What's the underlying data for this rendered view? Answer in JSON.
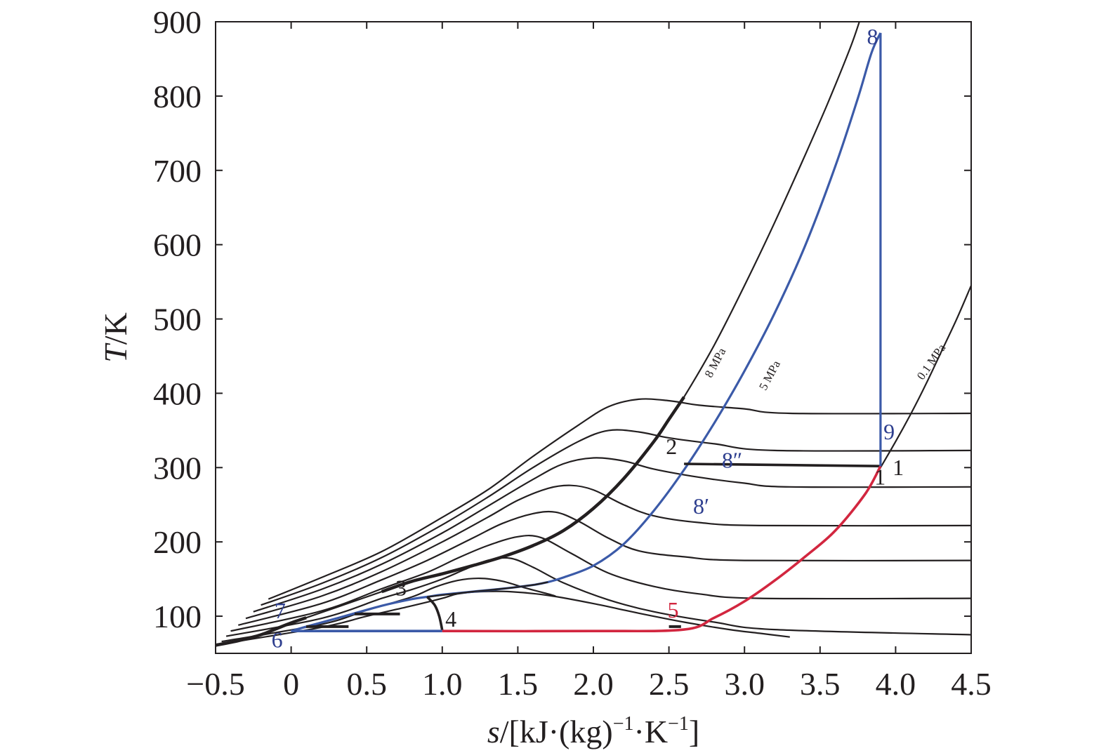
{
  "chart_data": {
    "type": "line",
    "xlabel": {
      "italic": "s",
      "rest": "/[kJ·(kg)",
      "sup1": "−1",
      "mid": "·K",
      "sup2": "−1",
      "end": "]"
    },
    "ylabel": {
      "italic": "T",
      "rest": "/K"
    },
    "xlim": [
      -0.5,
      4.5
    ],
    "ylim": [
      50,
      900
    ],
    "xticks": [
      {
        "v": -0.5,
        "label": "−0.5"
      },
      {
        "v": 0,
        "label": "0"
      },
      {
        "v": 0.5,
        "label": "0.5"
      },
      {
        "v": 1.0,
        "label": "1.0"
      },
      {
        "v": 1.5,
        "label": "1.5"
      },
      {
        "v": 2.0,
        "label": "2.0"
      },
      {
        "v": 2.5,
        "label": "2.5"
      },
      {
        "v": 3.0,
        "label": "3.0"
      },
      {
        "v": 3.5,
        "label": "3.5"
      },
      {
        "v": 4.0,
        "label": "4.0"
      },
      {
        "v": 4.5,
        "label": "4.5"
      }
    ],
    "yticks": [
      {
        "v": 100,
        "label": "100"
      },
      {
        "v": 200,
        "label": "200"
      },
      {
        "v": 300,
        "label": "300"
      },
      {
        "v": 400,
        "label": "400"
      },
      {
        "v": 500,
        "label": "500"
      },
      {
        "v": 600,
        "label": "600"
      },
      {
        "v": 700,
        "label": "700"
      },
      {
        "v": 800,
        "label": "800"
      },
      {
        "v": 900,
        "label": "900"
      }
    ],
    "colors": {
      "black": "#231f20",
      "blue": "#3b5aa8",
      "red": "#d2263f",
      "blue_label": "#2e3f8f"
    },
    "isobars": [
      {
        "name": "8 MPa",
        "points": [
          [
            -0.5,
            61
          ],
          [
            -0.35,
            67
          ],
          [
            -0.2,
            75
          ],
          [
            -0.1,
            83
          ],
          [
            0,
            91
          ],
          [
            0.1,
            98
          ],
          [
            0.3,
            112
          ],
          [
            0.6,
            133
          ],
          [
            0.8,
            147
          ],
          [
            1.0,
            157
          ],
          [
            1.2,
            168
          ],
          [
            1.4,
            180
          ],
          [
            1.6,
            195
          ],
          [
            1.8,
            215
          ],
          [
            2.0,
            245
          ],
          [
            2.2,
            285
          ],
          [
            2.4,
            335
          ],
          [
            2.5,
            365
          ],
          [
            2.6,
            395
          ],
          [
            2.8,
            465
          ],
          [
            3.0,
            545
          ],
          [
            3.2,
            630
          ],
          [
            3.4,
            720
          ],
          [
            3.55,
            790
          ],
          [
            3.7,
            865
          ],
          [
            3.76,
            900
          ]
        ]
      },
      {
        "name": "5 MPa",
        "points": [
          [
            0,
            80
          ],
          [
            0.1,
            86
          ],
          [
            0.3,
            97
          ],
          [
            0.6,
            114
          ],
          [
            0.8,
            123
          ],
          [
            0.9,
            126
          ],
          [
            1.0,
            129
          ],
          [
            1.2,
            133
          ],
          [
            1.4,
            137
          ],
          [
            1.6,
            142
          ],
          [
            1.7,
            146
          ],
          [
            1.8,
            152
          ],
          [
            2.0,
            168
          ],
          [
            2.2,
            197
          ],
          [
            2.4,
            242
          ],
          [
            2.6,
            297
          ],
          [
            2.8,
            360
          ],
          [
            3.0,
            430
          ],
          [
            3.2,
            508
          ],
          [
            3.4,
            598
          ],
          [
            3.6,
            705
          ],
          [
            3.75,
            797
          ],
          [
            3.84,
            858
          ],
          [
            3.9,
            885
          ]
        ]
      },
      {
        "name": "0.1 MPa",
        "points": [
          [
            3.87,
            290
          ],
          [
            3.9,
            300
          ],
          [
            4.0,
            335
          ],
          [
            4.1,
            372
          ],
          [
            4.2,
            412
          ],
          [
            4.3,
            455
          ],
          [
            4.4,
            498
          ],
          [
            4.5,
            545
          ]
        ]
      }
    ],
    "isotherm_curves": [
      [
        [
          -0.15,
          123
        ],
        [
          0.2,
          152
        ],
        [
          0.6,
          187
        ],
        [
          1.0,
          233
        ],
        [
          1.3,
          270
        ],
        [
          1.6,
          315
        ],
        [
          1.9,
          357
        ],
        [
          2.1,
          382
        ],
        [
          2.3,
          392
        ],
        [
          2.5,
          390
        ],
        [
          2.7,
          384
        ],
        [
          3.0,
          379
        ],
        [
          3.3,
          373
        ],
        [
          4.5,
          373
        ]
      ],
      [
        [
          -0.2,
          115
        ],
        [
          0.2,
          144
        ],
        [
          0.6,
          179
        ],
        [
          1.0,
          223
        ],
        [
          1.3,
          260
        ],
        [
          1.6,
          300
        ],
        [
          1.9,
          335
        ],
        [
          2.1,
          350
        ],
        [
          2.3,
          348
        ],
        [
          2.5,
          340
        ],
        [
          2.8,
          332
        ],
        [
          3.2,
          323
        ],
        [
          4.5,
          323
        ]
      ],
      [
        [
          -0.25,
          106
        ],
        [
          0.2,
          136
        ],
        [
          0.6,
          170
        ],
        [
          1.0,
          212
        ],
        [
          1.3,
          248
        ],
        [
          1.6,
          284
        ],
        [
          1.8,
          305
        ],
        [
          2.0,
          313
        ],
        [
          2.2,
          309
        ],
        [
          2.4,
          298
        ],
        [
          2.7,
          287
        ],
        [
          3.0,
          279
        ],
        [
          3.3,
          274
        ],
        [
          4.5,
          274
        ]
      ],
      [
        [
          -0.3,
          97
        ],
        [
          0.2,
          127
        ],
        [
          0.6,
          160
        ],
        [
          1.0,
          200
        ],
        [
          1.3,
          233
        ],
        [
          1.5,
          256
        ],
        [
          1.7,
          272
        ],
        [
          1.85,
          276
        ],
        [
          2.0,
          270
        ],
        [
          2.2,
          250
        ],
        [
          2.4,
          235
        ],
        [
          2.7,
          226
        ],
        [
          3.1,
          222
        ],
        [
          4.5,
          222
        ]
      ],
      [
        [
          -0.35,
          88
        ],
        [
          0.2,
          117
        ],
        [
          0.6,
          149
        ],
        [
          0.9,
          175
        ],
        [
          1.2,
          205
        ],
        [
          1.4,
          225
        ],
        [
          1.6,
          238
        ],
        [
          1.75,
          240
        ],
        [
          1.9,
          228
        ],
        [
          2.1,
          205
        ],
        [
          2.3,
          188
        ],
        [
          2.6,
          180
        ],
        [
          3.0,
          175
        ],
        [
          4.5,
          175
        ]
      ],
      [
        [
          -0.4,
          80
        ],
        [
          0.2,
          107
        ],
        [
          0.6,
          137
        ],
        [
          0.9,
          159
        ],
        [
          1.1,
          178
        ],
        [
          1.3,
          195
        ],
        [
          1.5,
          207
        ],
        [
          1.65,
          206
        ],
        [
          1.85,
          185
        ],
        [
          2.1,
          158
        ],
        [
          2.4,
          140
        ],
        [
          2.7,
          130
        ],
        [
          3.1,
          124
        ],
        [
          4.5,
          124
        ]
      ],
      [
        [
          -0.43,
          73
        ],
        [
          0.2,
          97
        ],
        [
          0.6,
          124
        ],
        [
          0.8,
          136
        ],
        [
          1.0,
          150
        ],
        [
          1.15,
          163
        ],
        [
          1.3,
          175
        ],
        [
          1.45,
          178
        ],
        [
          1.6,
          166
        ],
        [
          1.8,
          145
        ],
        [
          2.1,
          122
        ],
        [
          2.4,
          106
        ],
        [
          2.8,
          92
        ],
        [
          3.2,
          82
        ],
        [
          4.5,
          75
        ]
      ],
      [
        [
          -0.46,
          66
        ],
        [
          0.2,
          89
        ],
        [
          0.5,
          108
        ],
        [
          0.8,
          126
        ],
        [
          0.95,
          139
        ],
        [
          1.1,
          148
        ],
        [
          1.25,
          151
        ],
        [
          1.4,
          147
        ],
        [
          1.55,
          138
        ],
        [
          1.7,
          130
        ],
        [
          1.75,
          127
        ]
      ],
      [
        [
          -0.48,
          62
        ],
        [
          0.2,
          85
        ],
        [
          0.5,
          100
        ],
        [
          0.8,
          114
        ],
        [
          1.0,
          124
        ],
        [
          1.1,
          130
        ],
        [
          1.25,
          133
        ],
        [
          1.45,
          133
        ],
        [
          1.7,
          128
        ],
        [
          2.0,
          117
        ],
        [
          2.3,
          104
        ],
        [
          2.6,
          92
        ],
        [
          2.9,
          82
        ],
        [
          3.1,
          77
        ],
        [
          3.3,
          72
        ]
      ]
    ],
    "solid_line": [
      [
        0.9,
        126
      ],
      [
        1.2,
        133
      ],
      [
        1.4,
        137
      ],
      [
        1.6,
        142
      ],
      [
        1.7,
        146
      ]
    ],
    "line_1_2": [
      [
        2.6,
        305
      ],
      [
        3.9,
        302
      ]
    ],
    "line_3_4": [
      [
        0.9,
        126
      ],
      [
        0.95,
        115
      ],
      [
        0.98,
        100
      ],
      [
        1.0,
        81
      ]
    ],
    "line_8_9_1": [
      [
        3.9,
        885
      ],
      [
        3.9,
        302
      ]
    ],
    "line_6_4": [
      [
        0,
        80
      ],
      [
        1.0,
        80
      ]
    ],
    "red_line": [
      [
        1.0,
        80
      ],
      [
        2.0,
        80
      ],
      [
        2.6,
        82
      ],
      [
        2.8,
        98
      ],
      [
        3.0,
        120
      ],
      [
        3.2,
        148
      ],
      [
        3.4,
        180
      ],
      [
        3.6,
        215
      ],
      [
        3.8,
        265
      ],
      [
        3.9,
        302
      ]
    ],
    "ticks_short": [
      [
        0.1,
        86,
        0.38,
        86
      ],
      [
        0.42,
        103,
        0.72,
        103
      ],
      [
        2.5,
        86,
        2.58,
        86
      ]
    ],
    "isobar_labels": [
      {
        "text": "8 MPa",
        "x": 2.78,
        "y": 420,
        "angle": -62
      },
      {
        "text": "5 MPa",
        "x": 3.14,
        "y": 403,
        "angle": -62
      },
      {
        "text": "0.1 MPa",
        "x": 4.18,
        "y": 417,
        "angle": -55
      }
    ],
    "point_labels": [
      {
        "text": "1",
        "x": 3.98,
        "y": 290,
        "color": "black"
      },
      {
        "text": "1",
        "x": 3.86,
        "y": 277,
        "color": "black"
      },
      {
        "text": "2",
        "x": 2.48,
        "y": 318,
        "color": "black"
      },
      {
        "text": "3",
        "x": 0.69,
        "y": 128,
        "color": "black"
      },
      {
        "text": "4",
        "x": 1.02,
        "y": 86,
        "color": "black"
      },
      {
        "text": "5",
        "x": 2.49,
        "y": 98,
        "color": "red"
      },
      {
        "text": "6",
        "x": -0.13,
        "y": 58,
        "color": "blue_label"
      },
      {
        "text": "7",
        "x": -0.11,
        "y": 97,
        "color": "blue_label"
      },
      {
        "text": "8",
        "x": 3.81,
        "y": 870,
        "color": "blue_label"
      },
      {
        "text": "8′",
        "x": 2.66,
        "y": 238,
        "color": "blue_label"
      },
      {
        "text": "8″",
        "x": 2.85,
        "y": 300,
        "color": "blue_label"
      },
      {
        "text": "9",
        "x": 3.92,
        "y": 338,
        "color": "blue_label"
      }
    ]
  }
}
